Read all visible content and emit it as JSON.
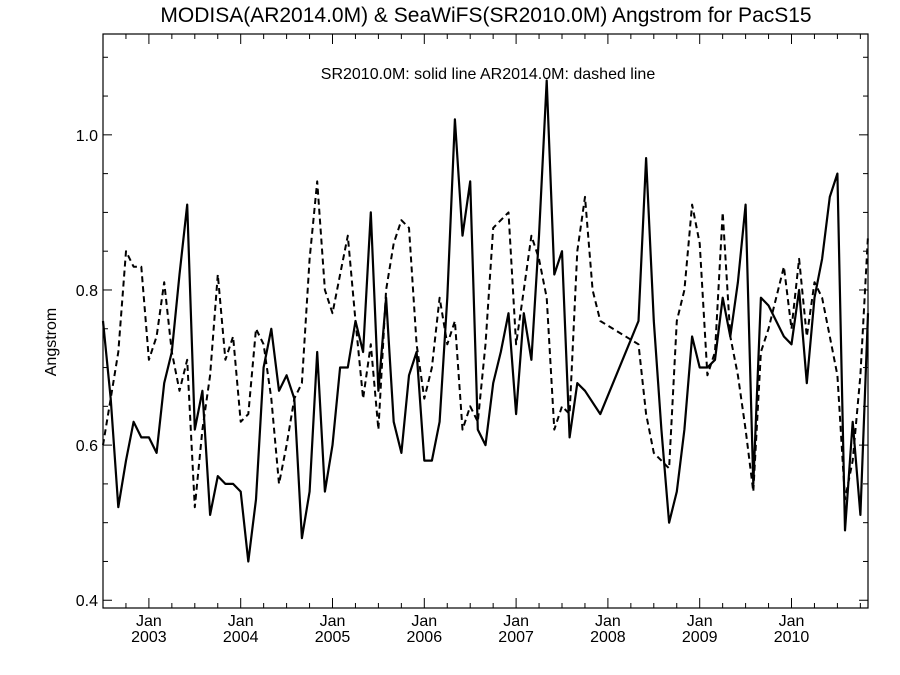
{
  "chart_data": {
    "type": "line",
    "title": "MODISA(AR2014.0M) & SeaWiFS(SR2010.0M)  Angstrom for PacS15",
    "annotation": "SR2010.0M: solid line   AR2014.0M: dashed line",
    "ylabel": "Angstrom",
    "xlabel": "",
    "ylim": [
      0.39,
      1.13
    ],
    "yticks": [
      0.4,
      0.6,
      0.8,
      1.0
    ],
    "ytick_labels": [
      "0.4",
      "0.6",
      "0.8",
      "1.0"
    ],
    "xlim": [
      "2002-07",
      "2010-11"
    ],
    "x_major_ticks": [
      {
        "date": "2003-01",
        "month": "Jan",
        "year": "2003"
      },
      {
        "date": "2004-01",
        "month": "Jan",
        "year": "2004"
      },
      {
        "date": "2005-01",
        "month": "Jan",
        "year": "2005"
      },
      {
        "date": "2006-01",
        "month": "Jan",
        "year": "2006"
      },
      {
        "date": "2007-01",
        "month": "Jan",
        "year": "2007"
      },
      {
        "date": "2008-01",
        "month": "Jan",
        "year": "2008"
      },
      {
        "date": "2009-01",
        "month": "Jan",
        "year": "2009"
      },
      {
        "date": "2010-01",
        "month": "Jan",
        "year": "2010"
      }
    ],
    "x_minor_ticks": [
      "2002-10",
      "2003-04",
      "2003-07",
      "2003-10",
      "2004-04",
      "2004-07",
      "2004-10",
      "2005-04",
      "2005-07",
      "2005-10",
      "2006-04",
      "2006-07",
      "2006-10",
      "2007-04",
      "2007-07",
      "2007-10",
      "2008-04",
      "2008-07",
      "2008-10",
      "2009-04",
      "2009-07",
      "2009-10",
      "2010-04",
      "2010-07",
      "2010-10"
    ],
    "grid": false,
    "series": [
      {
        "name": "SR2010.0M",
        "style": "solid",
        "color": "#000000",
        "points": [
          {
            "x": "2002-07",
            "y": 0.76
          },
          {
            "x": "2002-08",
            "y": 0.66
          },
          {
            "x": "2002-09",
            "y": 0.52
          },
          {
            "x": "2002-10",
            "y": 0.58
          },
          {
            "x": "2002-11",
            "y": 0.63
          },
          {
            "x": "2002-12",
            "y": 0.61
          },
          {
            "x": "2003-01",
            "y": 0.61
          },
          {
            "x": "2003-02",
            "y": 0.59
          },
          {
            "x": "2003-03",
            "y": 0.68
          },
          {
            "x": "2003-04",
            "y": 0.72
          },
          {
            "x": "2003-05",
            "y": 0.82
          },
          {
            "x": "2003-06",
            "y": 0.91
          },
          {
            "x": "2003-07",
            "y": 0.62
          },
          {
            "x": "2003-08",
            "y": 0.67
          },
          {
            "x": "2003-09",
            "y": 0.51
          },
          {
            "x": "2003-10",
            "y": 0.56
          },
          {
            "x": "2003-11",
            "y": 0.55
          },
          {
            "x": "2003-12",
            "y": 0.55
          },
          {
            "x": "2004-01",
            "y": 0.54
          },
          {
            "x": "2004-02",
            "y": 0.45
          },
          {
            "x": "2004-03",
            "y": 0.53
          },
          {
            "x": "2004-04",
            "y": 0.7
          },
          {
            "x": "2004-05",
            "y": 0.75
          },
          {
            "x": "2004-06",
            "y": 0.67
          },
          {
            "x": "2004-07",
            "y": 0.69
          },
          {
            "x": "2004-08",
            "y": 0.66
          },
          {
            "x": "2004-09",
            "y": 0.48
          },
          {
            "x": "2004-10",
            "y": 0.54
          },
          {
            "x": "2004-11",
            "y": 0.72
          },
          {
            "x": "2004-12",
            "y": 0.54
          },
          {
            "x": "2005-01",
            "y": 0.6
          },
          {
            "x": "2005-02",
            "y": 0.7
          },
          {
            "x": "2005-03",
            "y": 0.7
          },
          {
            "x": "2005-04",
            "y": 0.76
          },
          {
            "x": "2005-05",
            "y": 0.72
          },
          {
            "x": "2005-06",
            "y": 0.9
          },
          {
            "x": "2005-07",
            "y": 0.67
          },
          {
            "x": "2005-08",
            "y": 0.79
          },
          {
            "x": "2005-09",
            "y": 0.63
          },
          {
            "x": "2005-10",
            "y": 0.59
          },
          {
            "x": "2005-11",
            "y": 0.69
          },
          {
            "x": "2005-12",
            "y": 0.72
          },
          {
            "x": "2006-01",
            "y": 0.58
          },
          {
            "x": "2006-02",
            "y": 0.58
          },
          {
            "x": "2006-03",
            "y": 0.63
          },
          {
            "x": "2006-04",
            "y": 0.79
          },
          {
            "x": "2006-05",
            "y": 1.02
          },
          {
            "x": "2006-06",
            "y": 0.87
          },
          {
            "x": "2006-07",
            "y": 0.94
          },
          {
            "x": "2006-08",
            "y": 0.62
          },
          {
            "x": "2006-09",
            "y": 0.6
          },
          {
            "x": "2006-10",
            "y": 0.68
          },
          {
            "x": "2006-11",
            "y": 0.72
          },
          {
            "x": "2006-12",
            "y": 0.77
          },
          {
            "x": "2007-01",
            "y": 0.64
          },
          {
            "x": "2007-02",
            "y": 0.77
          },
          {
            "x": "2007-03",
            "y": 0.71
          },
          {
            "x": "2007-04",
            "y": 0.87
          },
          {
            "x": "2007-05",
            "y": 1.07
          },
          {
            "x": "2007-06",
            "y": 0.82
          },
          {
            "x": "2007-07",
            "y": 0.85
          },
          {
            "x": "2007-08",
            "y": 0.61
          },
          {
            "x": "2007-09",
            "y": 0.68
          },
          {
            "x": "2007-10",
            "y": 0.67
          },
          {
            "x": "2007-12",
            "y": 0.64
          },
          {
            "x": "2008-05",
            "y": 0.76
          },
          {
            "x": "2008-06",
            "y": 0.97
          },
          {
            "x": "2008-07",
            "y": 0.76
          },
          {
            "x": "2008-08",
            "y": 0.62
          },
          {
            "x": "2008-09",
            "y": 0.5
          },
          {
            "x": "2008-10",
            "y": 0.54
          },
          {
            "x": "2008-11",
            "y": 0.62
          },
          {
            "x": "2008-12",
            "y": 0.74
          },
          {
            "x": "2009-01",
            "y": 0.7
          },
          {
            "x": "2009-02",
            "y": 0.7
          },
          {
            "x": "2009-03",
            "y": 0.71
          },
          {
            "x": "2009-04",
            "y": 0.79
          },
          {
            "x": "2009-05",
            "y": 0.74
          },
          {
            "x": "2009-06",
            "y": 0.81
          },
          {
            "x": "2009-07",
            "y": 0.91
          },
          {
            "x": "2009-08",
            "y": 0.55
          },
          {
            "x": "2009-09",
            "y": 0.79
          },
          {
            "x": "2009-10",
            "y": 0.78
          },
          {
            "x": "2009-11",
            "y": 0.76
          },
          {
            "x": "2009-12",
            "y": 0.74
          },
          {
            "x": "2010-01",
            "y": 0.73
          },
          {
            "x": "2010-02",
            "y": 0.8
          },
          {
            "x": "2010-03",
            "y": 0.68
          },
          {
            "x": "2010-04",
            "y": 0.79
          },
          {
            "x": "2010-05",
            "y": 0.84
          },
          {
            "x": "2010-06",
            "y": 0.92
          },
          {
            "x": "2010-07",
            "y": 0.95
          },
          {
            "x": "2010-08",
            "y": 0.49
          },
          {
            "x": "2010-09",
            "y": 0.63
          },
          {
            "x": "2010-10",
            "y": 0.51
          },
          {
            "x": "2010-11",
            "y": 0.77
          }
        ]
      },
      {
        "name": "AR2014.0M",
        "style": "dashed",
        "color": "#000000",
        "points": [
          {
            "x": "2002-07",
            "y": 0.6
          },
          {
            "x": "2002-08",
            "y": 0.66
          },
          {
            "x": "2002-09",
            "y": 0.72
          },
          {
            "x": "2002-10",
            "y": 0.85
          },
          {
            "x": "2002-11",
            "y": 0.83
          },
          {
            "x": "2002-12",
            "y": 0.83
          },
          {
            "x": "2003-01",
            "y": 0.71
          },
          {
            "x": "2003-02",
            "y": 0.74
          },
          {
            "x": "2003-03",
            "y": 0.81
          },
          {
            "x": "2003-04",
            "y": 0.72
          },
          {
            "x": "2003-05",
            "y": 0.67
          },
          {
            "x": "2003-06",
            "y": 0.71
          },
          {
            "x": "2003-07",
            "y": 0.52
          },
          {
            "x": "2003-08",
            "y": 0.62
          },
          {
            "x": "2003-09",
            "y": 0.69
          },
          {
            "x": "2003-10",
            "y": 0.82
          },
          {
            "x": "2003-11",
            "y": 0.71
          },
          {
            "x": "2003-12",
            "y": 0.74
          },
          {
            "x": "2004-01",
            "y": 0.63
          },
          {
            "x": "2004-02",
            "y": 0.64
          },
          {
            "x": "2004-03",
            "y": 0.75
          },
          {
            "x": "2004-04",
            "y": 0.73
          },
          {
            "x": "2004-05",
            "y": 0.66
          },
          {
            "x": "2004-06",
            "y": 0.55
          },
          {
            "x": "2004-07",
            "y": 0.6
          },
          {
            "x": "2004-08",
            "y": 0.66
          },
          {
            "x": "2004-09",
            "y": 0.68
          },
          {
            "x": "2004-10",
            "y": 0.84
          },
          {
            "x": "2004-11",
            "y": 0.94
          },
          {
            "x": "2004-12",
            "y": 0.8
          },
          {
            "x": "2005-01",
            "y": 0.77
          },
          {
            "x": "2005-02",
            "y": 0.82
          },
          {
            "x": "2005-03",
            "y": 0.87
          },
          {
            "x": "2005-04",
            "y": 0.76
          },
          {
            "x": "2005-05",
            "y": 0.66
          },
          {
            "x": "2005-06",
            "y": 0.73
          },
          {
            "x": "2005-07",
            "y": 0.62
          },
          {
            "x": "2005-08",
            "y": 0.8
          },
          {
            "x": "2005-09",
            "y": 0.86
          },
          {
            "x": "2005-10",
            "y": 0.89
          },
          {
            "x": "2005-11",
            "y": 0.88
          },
          {
            "x": "2005-12",
            "y": 0.73
          },
          {
            "x": "2006-01",
            "y": 0.66
          },
          {
            "x": "2006-02",
            "y": 0.7
          },
          {
            "x": "2006-03",
            "y": 0.79
          },
          {
            "x": "2006-04",
            "y": 0.73
          },
          {
            "x": "2006-05",
            "y": 0.76
          },
          {
            "x": "2006-06",
            "y": 0.62
          },
          {
            "x": "2006-07",
            "y": 0.65
          },
          {
            "x": "2006-08",
            "y": 0.63
          },
          {
            "x": "2006-09",
            "y": 0.73
          },
          {
            "x": "2006-10",
            "y": 0.88
          },
          {
            "x": "2006-11",
            "y": 0.89
          },
          {
            "x": "2006-12",
            "y": 0.9
          },
          {
            "x": "2007-01",
            "y": 0.73
          },
          {
            "x": "2007-02",
            "y": 0.8
          },
          {
            "x": "2007-03",
            "y": 0.87
          },
          {
            "x": "2007-04",
            "y": 0.84
          },
          {
            "x": "2007-05",
            "y": 0.79
          },
          {
            "x": "2007-06",
            "y": 0.62
          },
          {
            "x": "2007-07",
            "y": 0.65
          },
          {
            "x": "2007-08",
            "y": 0.64
          },
          {
            "x": "2007-09",
            "y": 0.85
          },
          {
            "x": "2007-10",
            "y": 0.92
          },
          {
            "x": "2007-11",
            "y": 0.8
          },
          {
            "x": "2007-12",
            "y": 0.76
          },
          {
            "x": "2008-05",
            "y": 0.73
          },
          {
            "x": "2008-06",
            "y": 0.64
          },
          {
            "x": "2008-07",
            "y": 0.59
          },
          {
            "x": "2008-08",
            "y": 0.58
          },
          {
            "x": "2008-09",
            "y": 0.57
          },
          {
            "x": "2008-10",
            "y": 0.76
          },
          {
            "x": "2008-11",
            "y": 0.8
          },
          {
            "x": "2008-12",
            "y": 0.91
          },
          {
            "x": "2009-01",
            "y": 0.86
          },
          {
            "x": "2009-02",
            "y": 0.69
          },
          {
            "x": "2009-03",
            "y": 0.72
          },
          {
            "x": "2009-04",
            "y": 0.9
          },
          {
            "x": "2009-05",
            "y": 0.74
          },
          {
            "x": "2009-06",
            "y": 0.69
          },
          {
            "x": "2009-07",
            "y": 0.62
          },
          {
            "x": "2009-08",
            "y": 0.54
          },
          {
            "x": "2009-09",
            "y": 0.72
          },
          {
            "x": "2009-10",
            "y": 0.75
          },
          {
            "x": "2009-11",
            "y": 0.79
          },
          {
            "x": "2009-12",
            "y": 0.83
          },
          {
            "x": "2010-01",
            "y": 0.75
          },
          {
            "x": "2010-02",
            "y": 0.84
          },
          {
            "x": "2010-03",
            "y": 0.74
          },
          {
            "x": "2010-04",
            "y": 0.81
          },
          {
            "x": "2010-05",
            "y": 0.79
          },
          {
            "x": "2010-06",
            "y": 0.74
          },
          {
            "x": "2010-07",
            "y": 0.69
          },
          {
            "x": "2010-08",
            "y": 0.53
          },
          {
            "x": "2010-09",
            "y": 0.58
          },
          {
            "x": "2010-10",
            "y": 0.69
          },
          {
            "x": "2010-11",
            "y": 0.87
          }
        ]
      }
    ]
  }
}
